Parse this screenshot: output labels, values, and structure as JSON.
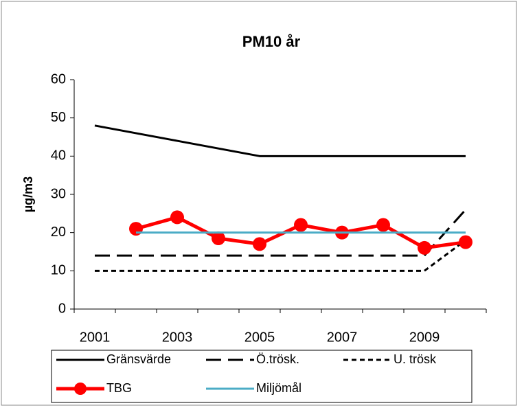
{
  "chart_data": {
    "type": "line",
    "title": "PM10 år",
    "y_label": "µg/m3",
    "categories": [
      "2001",
      null,
      "2003",
      null,
      "2005",
      null,
      "2007",
      null,
      "2009",
      null
    ],
    "ylim": [
      0,
      60
    ],
    "yticks": [
      0,
      10,
      20,
      30,
      40,
      50,
      60
    ],
    "grid": false,
    "series": [
      {
        "name": "Gränsvärde",
        "color": "#000000",
        "dash": "solid",
        "values": [
          48,
          46,
          44,
          42,
          40,
          40,
          40,
          40,
          40,
          40
        ]
      },
      {
        "name": "Ö.trösk.",
        "color": "#000000",
        "dash": "long",
        "values": [
          14,
          14,
          14,
          14,
          14,
          14,
          14,
          14,
          14,
          26
        ]
      },
      {
        "name": "U. trösk",
        "color": "#000000",
        "dash": "short",
        "values": [
          10,
          10,
          10,
          10,
          10,
          10,
          10,
          10,
          10,
          18
        ]
      },
      {
        "name": "TBG",
        "color": "#ff0000",
        "dash": "solid",
        "markers": true,
        "values": [
          null,
          21,
          24,
          18.5,
          17,
          22,
          20,
          22,
          16,
          17.5
        ]
      },
      {
        "name": "Miljömål",
        "color": "#4bacc6",
        "dash": "solid",
        "values": [
          null,
          20,
          20,
          20,
          20,
          20,
          20,
          20,
          20,
          20
        ]
      }
    ]
  }
}
